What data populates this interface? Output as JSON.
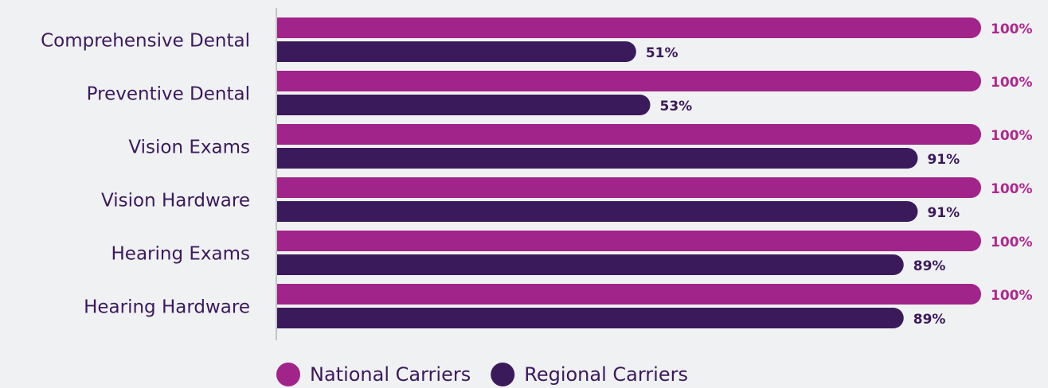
{
  "chart_data": {
    "type": "bar",
    "orientation": "horizontal",
    "categories": [
      "Comprehensive Dental",
      "Preventive Dental",
      "Vision Exams",
      "Vision Hardware",
      "Hearing Exams",
      "Hearing Hardware"
    ],
    "series": [
      {
        "name": "National Carriers",
        "color": "#a0248a",
        "values": [
          100,
          100,
          100,
          100,
          100,
          100
        ],
        "value_labels": [
          "100%",
          "100%",
          "100%",
          "100%",
          "100%",
          "100%"
        ]
      },
      {
        "name": "Regional Carriers",
        "color": "#3b1a5c",
        "values": [
          51,
          53,
          91,
          91,
          89,
          89
        ],
        "value_labels": [
          "51%",
          "53%",
          "91%",
          "91%",
          "89%",
          "89%"
        ]
      }
    ],
    "xlim": [
      0,
      100
    ]
  }
}
